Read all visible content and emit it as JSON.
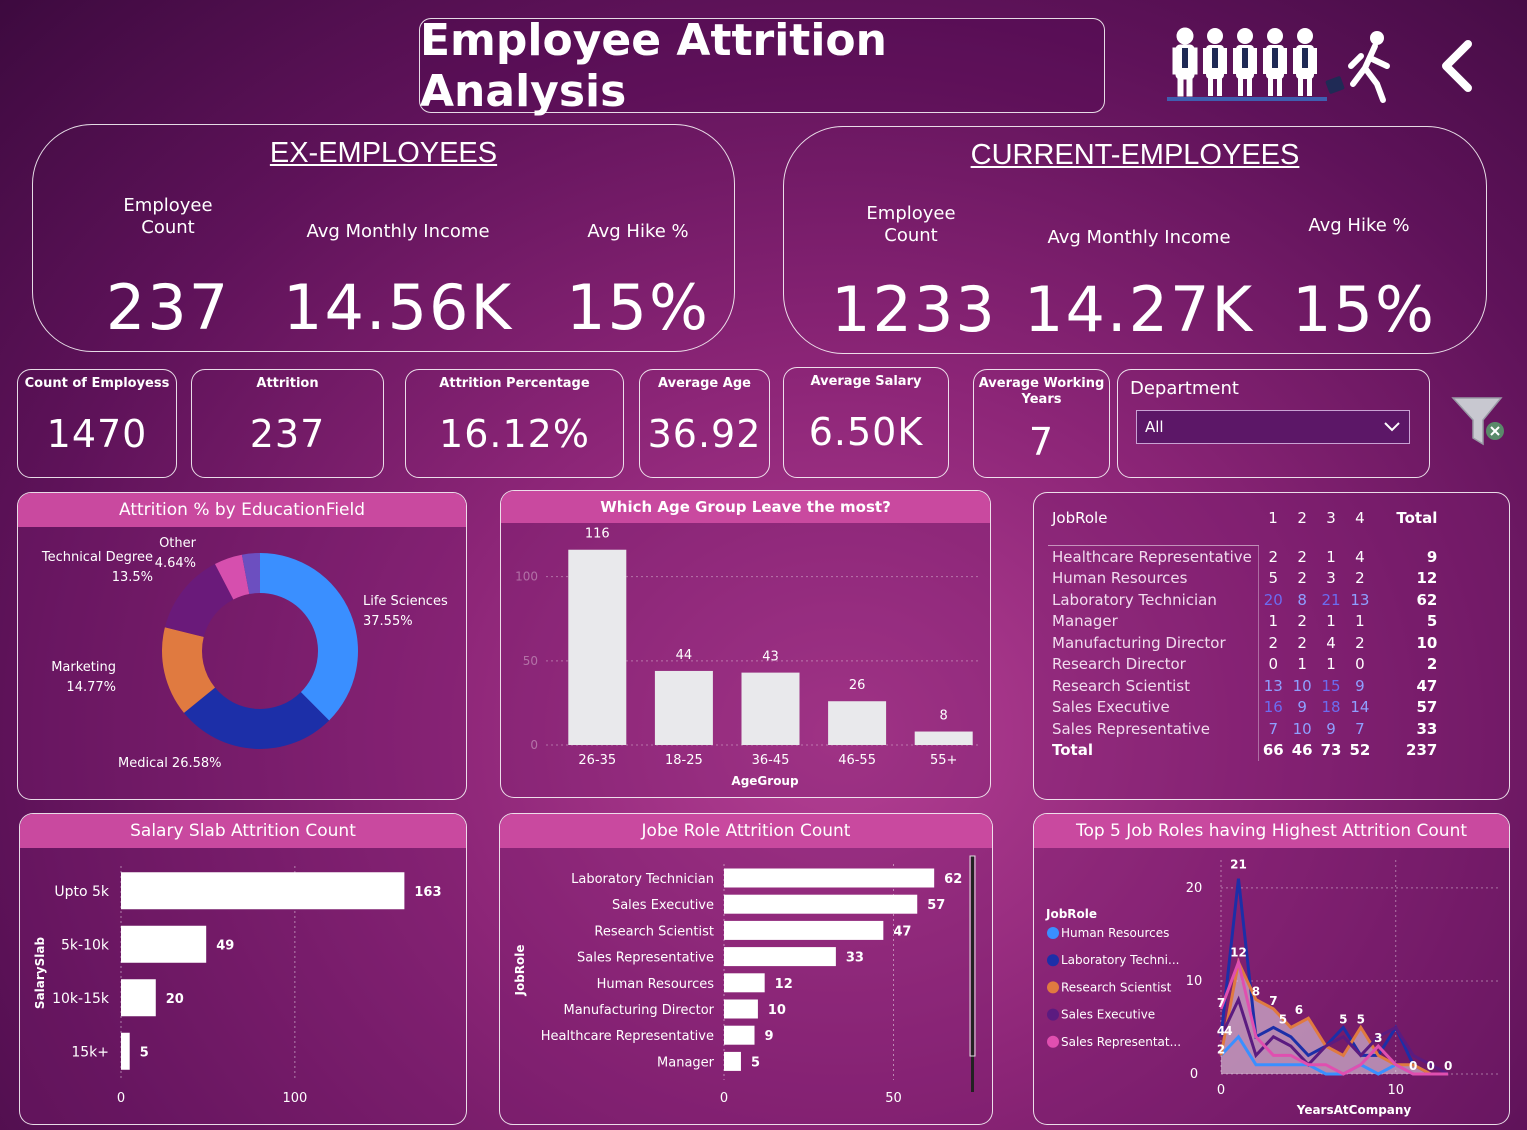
{
  "title": "Employee Attrition Analysis",
  "ex": {
    "heading": "EX-EMPLOYEES",
    "count_label": "Employee Count",
    "income_label": "Avg Monthly Income",
    "hike_label": "Avg Hike %",
    "count": "237",
    "income": "14.56K",
    "hike": "15%"
  },
  "current": {
    "heading": "CURRENT-EMPLOYEES",
    "count_label": "Employee Count",
    "income_label": "Avg Monthly Income",
    "hike_label": "Avg Hike %",
    "count": "1233",
    "income": "14.27K",
    "hike": "15%"
  },
  "cards": {
    "count_label": "Count of Employess",
    "count": "1470",
    "attrition_label": "Attrition",
    "attrition": "237",
    "pct_label": "Attrition Percentage",
    "pct": "16.12%",
    "age_label": "Average Age",
    "age": "36.92",
    "salary_label": "Average Salary",
    "salary": "6.50K",
    "years_label": "Average Working Years",
    "years": "7"
  },
  "department": {
    "label": "Department",
    "selected": "All"
  },
  "icons": {
    "back": "chevron-left-icon",
    "people": "employees-leaving-icon",
    "filter": "clear-filter-icon"
  },
  "colors": {
    "accent": "#c9499f",
    "life": "#3a8fff",
    "medical": "#1c2fa8",
    "marketing": "#e07a40",
    "technical": "#6a1a7a",
    "other": "#d64fae",
    "other2": "#6c4fc0"
  },
  "chart_data": [
    {
      "type": "pie",
      "title": "Attrition % by EducationField",
      "slices": [
        {
          "label": "Life Sciences",
          "value": 37.55,
          "text": "Life Sciences 37.55%"
        },
        {
          "label": "Medical",
          "value": 26.58,
          "text": "Medical 26.58%"
        },
        {
          "label": "Marketing",
          "value": 14.77,
          "text": "Marketing 14.77%"
        },
        {
          "label": "Technical Degree",
          "value": 13.5,
          "text": "Technical Degree 13.5%"
        },
        {
          "label": "Other",
          "value": 4.64,
          "text": "Other 4.64%"
        },
        {
          "label": "Human Resources",
          "value": 2.96,
          "text": ""
        }
      ]
    },
    {
      "type": "bar",
      "title": "Which Age Group Leave the most?",
      "categories": [
        "26-35",
        "18-25",
        "36-45",
        "46-55",
        "55+"
      ],
      "values": [
        116,
        44,
        43,
        26,
        8
      ],
      "xlabel": "AgeGroup",
      "ylim": [
        0,
        120
      ],
      "yticks": [
        0,
        50,
        100
      ]
    },
    {
      "type": "table",
      "title": "JobRole matrix",
      "columns": [
        "JobRole",
        "1",
        "2",
        "3",
        "4",
        "Total"
      ],
      "rows": [
        [
          "Healthcare Representative",
          "2",
          "2",
          "1",
          "4",
          "9"
        ],
        [
          "Human Resources",
          "5",
          "2",
          "3",
          "2",
          "12"
        ],
        [
          "Laboratory Technician",
          "20",
          "8",
          "21",
          "13",
          "62"
        ],
        [
          "Manager",
          "1",
          "2",
          "1",
          "1",
          "5"
        ],
        [
          "Manufacturing Director",
          "2",
          "2",
          "4",
          "2",
          "10"
        ],
        [
          "Research Director",
          "0",
          "1",
          "1",
          "0",
          "2"
        ],
        [
          "Research Scientist",
          "13",
          "10",
          "15",
          "9",
          "47"
        ],
        [
          "Sales Executive",
          "16",
          "9",
          "18",
          "14",
          "57"
        ],
        [
          "Sales Representative",
          "7",
          "10",
          "9",
          "7",
          "33"
        ]
      ],
      "total": [
        "Total",
        "66",
        "46",
        "73",
        "52",
        "237"
      ]
    },
    {
      "type": "bar",
      "title": "Salary Slab Attrition Count",
      "categories": [
        "Upto 5k",
        "5k-10k",
        "10k-15k",
        "15k+"
      ],
      "values": [
        163,
        49,
        20,
        5
      ],
      "ylabel": "SalarySlab",
      "xlim": [
        0,
        200
      ],
      "xticks": [
        0,
        100
      ]
    },
    {
      "type": "bar",
      "title": "Jobe Role Attrition Count",
      "categories": [
        "Laboratory Technician",
        "Sales Executive",
        "Research Scientist",
        "Sales Representative",
        "Human Resources",
        "Manufacturing Director",
        "Healthcare Representative",
        "Manager"
      ],
      "values": [
        62,
        57,
        47,
        33,
        12,
        10,
        9,
        5
      ],
      "ylabel": "JobRole",
      "xlim": [
        0,
        70
      ],
      "xticks": [
        0,
        50
      ]
    },
    {
      "type": "line",
      "title": "Top 5 Job Roles having Highest Attrition Count",
      "xlabel": "YearsAtCompany",
      "legend_title": "JobRole",
      "xlim": [
        0,
        13
      ],
      "ylim": [
        0,
        23
      ],
      "xticks": [
        0,
        10
      ],
      "yticks": [
        0,
        10,
        20
      ],
      "x": [
        0,
        1,
        2,
        3,
        4,
        5,
        6,
        7,
        8,
        9,
        10,
        11,
        12,
        13
      ],
      "series": [
        {
          "name": "Human Resources",
          "legend": "Human Resources",
          "color": "#3a8fff",
          "values": [
            2,
            4,
            1,
            1,
            1,
            1,
            0,
            0,
            1,
            0,
            1,
            0,
            0,
            0
          ]
        },
        {
          "name": "Laboratory Technician",
          "legend": "Laboratory Techni...",
          "color": "#1c2fa8",
          "values": [
            4,
            21,
            4,
            5,
            4,
            2,
            3,
            5,
            2,
            2,
            5,
            1,
            0,
            0
          ]
        },
        {
          "name": "Research Scientist",
          "legend": "Research Scientist",
          "color": "#e07a40",
          "values": [
            2,
            12,
            8,
            7,
            5,
            6,
            3,
            2,
            5,
            2,
            1,
            1,
            0,
            0
          ]
        },
        {
          "name": "Sales Executive",
          "legend": "Sales Executive",
          "color": "#5b1b80",
          "values": [
            4,
            8,
            2,
            4,
            3,
            1,
            3,
            4,
            2,
            4,
            5,
            2,
            1,
            0
          ]
        },
        {
          "name": "Sales Representative",
          "legend": "Sales Representat...",
          "color": "#e04fb0",
          "values": [
            7,
            12,
            4,
            2,
            2,
            1,
            1,
            0,
            1,
            3,
            1,
            0,
            0,
            0
          ]
        }
      ],
      "labels": [
        "21",
        "8",
        "7",
        "6",
        "5",
        "5",
        "5",
        "3",
        "0",
        "0",
        "0",
        "4",
        "7",
        "2",
        "4",
        "12"
      ]
    }
  ]
}
